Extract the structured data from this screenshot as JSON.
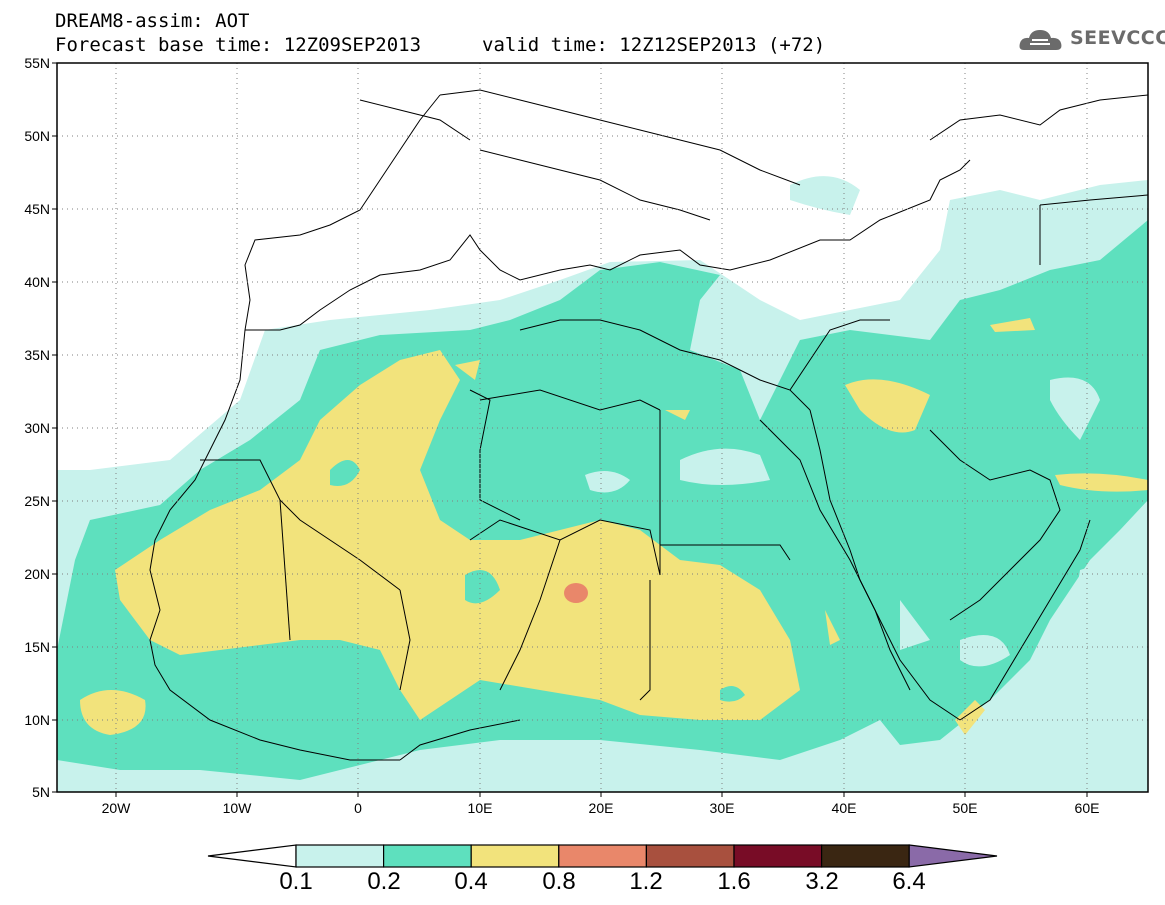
{
  "header": {
    "title_line1": "DREAM8-assim: AOT",
    "base_time_text": "Forecast base time: 12Z09SEP2013",
    "valid_time_text": "valid time: 12Z12SEP2013 (+72)",
    "logo_text": "SEEVCCC"
  },
  "axes": {
    "lat_labels": [
      "55N",
      "50N",
      "45N",
      "40N",
      "35N",
      "30N",
      "25N",
      "20N",
      "15N",
      "10N",
      "5N"
    ],
    "lon_labels": [
      "20W",
      "10W",
      "0",
      "10E",
      "20E",
      "30E",
      "40E",
      "50E",
      "60E"
    ],
    "grid": "dotted"
  },
  "colorbar": {
    "labels": [
      "0.1",
      "0.2",
      "0.4",
      "0.8",
      "1.2",
      "1.6",
      "3.2",
      "6.4"
    ],
    "colors": [
      "#c8f2ec",
      "#5ee0be",
      "#f2e37c",
      "#e9876a",
      "#a8503e",
      "#780c26",
      "#3a2612",
      "#8a6aa8"
    ]
  },
  "colors": {
    "ocean_white": "#ffffff",
    "light_cyan": "#c8f2ec",
    "teal": "#5ee0be",
    "yellow": "#f2e37c",
    "orange": "#e9876a"
  }
}
